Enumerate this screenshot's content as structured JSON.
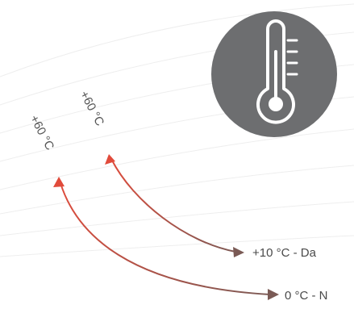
{
  "icon": {
    "name": "thermometer-icon",
    "bg_color": "#6d6e70",
    "fg_color": "#ffffff"
  },
  "arrows": [
    {
      "from_label": "+60 °C",
      "to_label": "+10 °C - Da"
    },
    {
      "from_label": "+60 °C",
      "to_label": "0 °C - N"
    }
  ],
  "colors": {
    "arrow_start": "#e14b3b",
    "arrow_end": "#7a5a55",
    "background_lines": "#eeeeee"
  }
}
